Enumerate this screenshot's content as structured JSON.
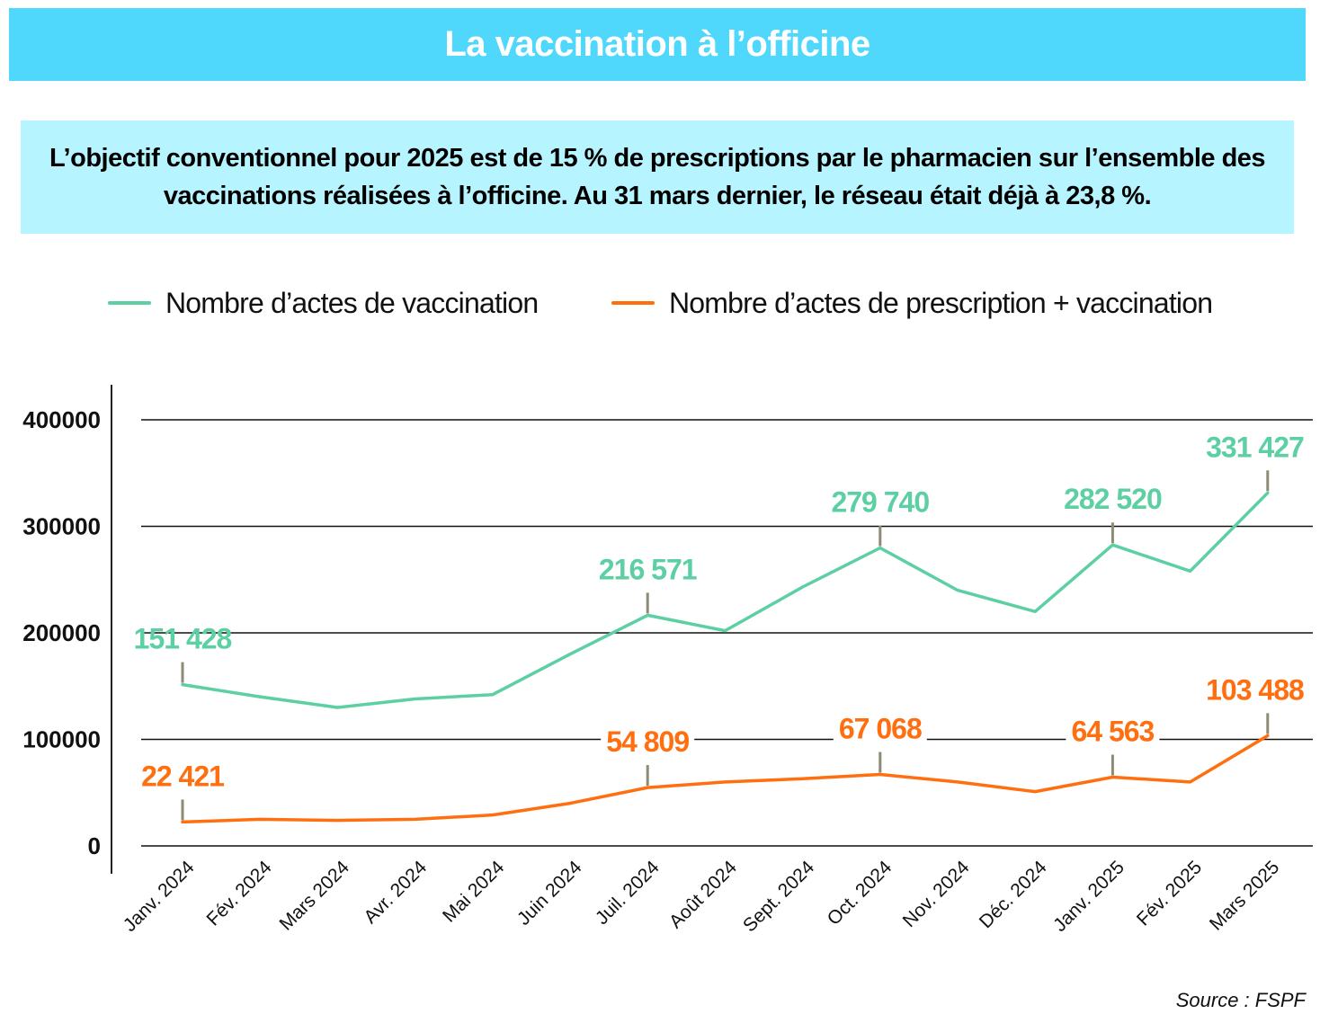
{
  "title": "La vaccination à l’officine",
  "subtitle": "L’objectif conventionnel pour 2025 est de 15 % de prescriptions par le pharmacien sur l’ensemble des vaccinations réalisées à l’officine. Au 31 mars dernier, le réseau était déjà à 23,8 %.",
  "source": "Source : FSPF",
  "colors": {
    "title_bg": "#4fd8fb",
    "subtitle_bg": "#b6f4ff",
    "vaccination": "#5ccfa3",
    "prescription": "#ff6f0f",
    "marker": "#8f8a74"
  },
  "chart_data": {
    "type": "line",
    "categories": [
      "Janv. 2024",
      "Fév. 2024",
      "Mars 2024",
      "Avr. 2024",
      "Mai 2024",
      "Juin 2024",
      "Juil. 2024",
      "Août 2024",
      "Sept. 2024",
      "Oct. 2024",
      "Nov. 2024",
      "Déc. 2024",
      "Janv. 2025",
      "Fév. 2025",
      "Mars 2025"
    ],
    "ylim": [
      0,
      400000
    ],
    "yticks": [
      0,
      100000,
      200000,
      300000,
      400000
    ],
    "ytick_labels": [
      "0",
      "100000",
      "200000",
      "300000",
      "400000"
    ],
    "grid": true,
    "legend_position": "top",
    "series": [
      {
        "name": "Nombre d’actes de vaccination",
        "color": "#5ccfa3",
        "values": [
          151428,
          140000,
          130000,
          138000,
          142000,
          180000,
          216571,
          202000,
          243000,
          279740,
          240000,
          220000,
          282520,
          258000,
          331427
        ],
        "labels": [
          {
            "index": 0,
            "text": "151 428"
          },
          {
            "index": 6,
            "text": "216 571"
          },
          {
            "index": 9,
            "text": "279 740"
          },
          {
            "index": 12,
            "text": "282 520"
          },
          {
            "index": 14,
            "text": "331 427"
          }
        ]
      },
      {
        "name": "Nombre d’actes de prescription + vaccination",
        "color": "#ff6f0f",
        "values": [
          22421,
          25000,
          24000,
          25000,
          29000,
          40000,
          54809,
          60000,
          63000,
          67068,
          60000,
          51000,
          64563,
          60000,
          103488
        ],
        "labels": [
          {
            "index": 0,
            "text": "22 421"
          },
          {
            "index": 6,
            "text": "54 809"
          },
          {
            "index": 9,
            "text": "67 068"
          },
          {
            "index": 12,
            "text": "64 563"
          },
          {
            "index": 14,
            "text": "103 488"
          }
        ]
      }
    ]
  }
}
